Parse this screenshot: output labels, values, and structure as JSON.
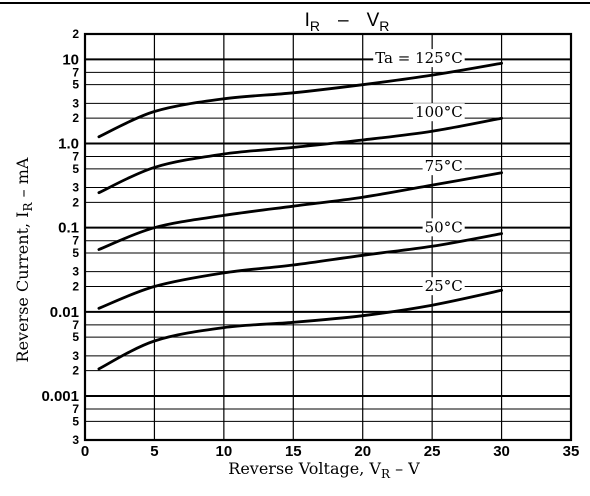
{
  "chart_data": {
    "type": "line",
    "title": "I_R – V_R",
    "title_main": "I",
    "title_sub": "R",
    "title_sep": "–",
    "title_main2": "V",
    "title_sub2": "R",
    "xlabel": "Reverse Voltage, V_R – V",
    "xlabel_parts": [
      "Reverse Voltage, V",
      "R",
      " – V"
    ],
    "ylabel": "Reverse Current, I_R – mA",
    "ylabel_parts": [
      "Reverse Current, I",
      "R",
      " – mA"
    ],
    "xlim": [
      0,
      35
    ],
    "ylim": [
      0.0003,
      20
    ],
    "y_scale": "log",
    "grid": true,
    "x_ticks": [
      "0",
      "5",
      "10",
      "15",
      "20",
      "25",
      "30",
      "35"
    ],
    "y_major_ticks": [
      {
        "value": 10,
        "label": "10"
      },
      {
        "value": 1,
        "label": "1.0"
      },
      {
        "value": 0.1,
        "label": "0.1"
      },
      {
        "value": 0.01,
        "label": "0.01"
      },
      {
        "value": 0.001,
        "label": "0.001"
      }
    ],
    "y_minor_ticks": [
      {
        "value": 20,
        "label": "2"
      },
      {
        "value": 7,
        "label": "7"
      },
      {
        "value": 5,
        "label": "5"
      },
      {
        "value": 3,
        "label": "3"
      },
      {
        "value": 2,
        "label": "2"
      },
      {
        "value": 0.7,
        "label": "7"
      },
      {
        "value": 0.5,
        "label": "5"
      },
      {
        "value": 0.3,
        "label": "3"
      },
      {
        "value": 0.2,
        "label": "2"
      },
      {
        "value": 0.07,
        "label": "7"
      },
      {
        "value": 0.05,
        "label": "5"
      },
      {
        "value": 0.03,
        "label": "3"
      },
      {
        "value": 0.02,
        "label": "2"
      },
      {
        "value": 0.007,
        "label": "7"
      },
      {
        "value": 0.005,
        "label": "5"
      },
      {
        "value": 0.003,
        "label": "3"
      },
      {
        "value": 0.002,
        "label": "2"
      },
      {
        "value": 0.0007,
        "label": "7"
      },
      {
        "value": 0.0005,
        "label": "5"
      },
      {
        "value": 0.0003,
        "label": "3"
      }
    ],
    "series": [
      {
        "name": "Ta = 125°C",
        "x": [
          1,
          5,
          10,
          15,
          20,
          25,
          30
        ],
        "values": [
          1.2,
          2.4,
          3.4,
          4.0,
          5.0,
          6.5,
          9.0
        ]
      },
      {
        "name": "100°C",
        "x": [
          1,
          5,
          10,
          15,
          20,
          25,
          30
        ],
        "values": [
          0.26,
          0.52,
          0.75,
          0.9,
          1.1,
          1.4,
          2.0
        ]
      },
      {
        "name": "75°C",
        "x": [
          1,
          5,
          10,
          15,
          20,
          25,
          30
        ],
        "values": [
          0.055,
          0.1,
          0.14,
          0.18,
          0.23,
          0.32,
          0.45
        ]
      },
      {
        "name": "50°C",
        "x": [
          1,
          5,
          10,
          15,
          20,
          25,
          30
        ],
        "values": [
          0.011,
          0.02,
          0.029,
          0.036,
          0.047,
          0.06,
          0.085
        ]
      },
      {
        "name": "25°C",
        "x": [
          1,
          5,
          10,
          15,
          20,
          25,
          30
        ],
        "values": [
          0.0021,
          0.0045,
          0.0065,
          0.0075,
          0.009,
          0.012,
          0.018
        ]
      }
    ],
    "series_label_texts": [
      "Ta = 125°C",
      "100°C",
      "75°C",
      "50°C",
      "25°C"
    ],
    "line_color": "#000000",
    "grid_color": "#000000"
  }
}
